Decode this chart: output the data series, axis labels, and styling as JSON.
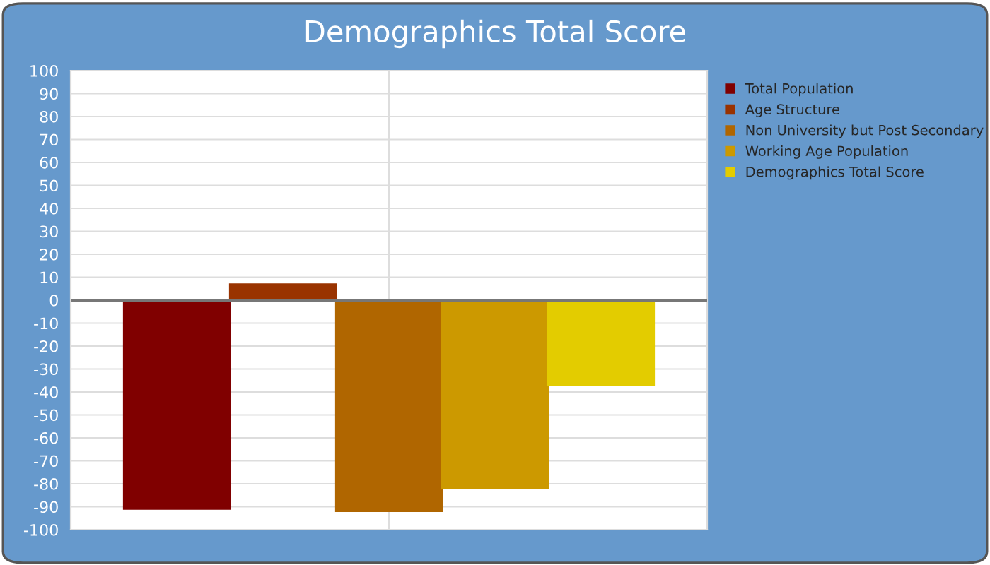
{
  "chart_data": {
    "type": "bar",
    "title": "Demographics Total Score",
    "categories": [
      null
    ],
    "series": [
      {
        "name": "Total Population",
        "color": "#800000",
        "values": [
          -91
        ]
      },
      {
        "name": "Age Structure",
        "color": "#993300",
        "values": [
          7
        ]
      },
      {
        "name": "Non University but Post Secondary",
        "color": "#b06600",
        "values": [
          -92
        ]
      },
      {
        "name": "Working Age Population",
        "color": "#cc9900",
        "values": [
          -82
        ]
      },
      {
        "name": "Demographics Total Score",
        "color": "#e3cc00",
        "values": [
          -37
        ]
      }
    ],
    "ylim": [
      -100,
      100
    ],
    "yticks": [
      -100,
      -90,
      -80,
      -70,
      -60,
      -50,
      -40,
      -30,
      -20,
      -10,
      0,
      10,
      20,
      30,
      40,
      50,
      60,
      70,
      80,
      90,
      100
    ],
    "grid": true,
    "legend": "right"
  }
}
